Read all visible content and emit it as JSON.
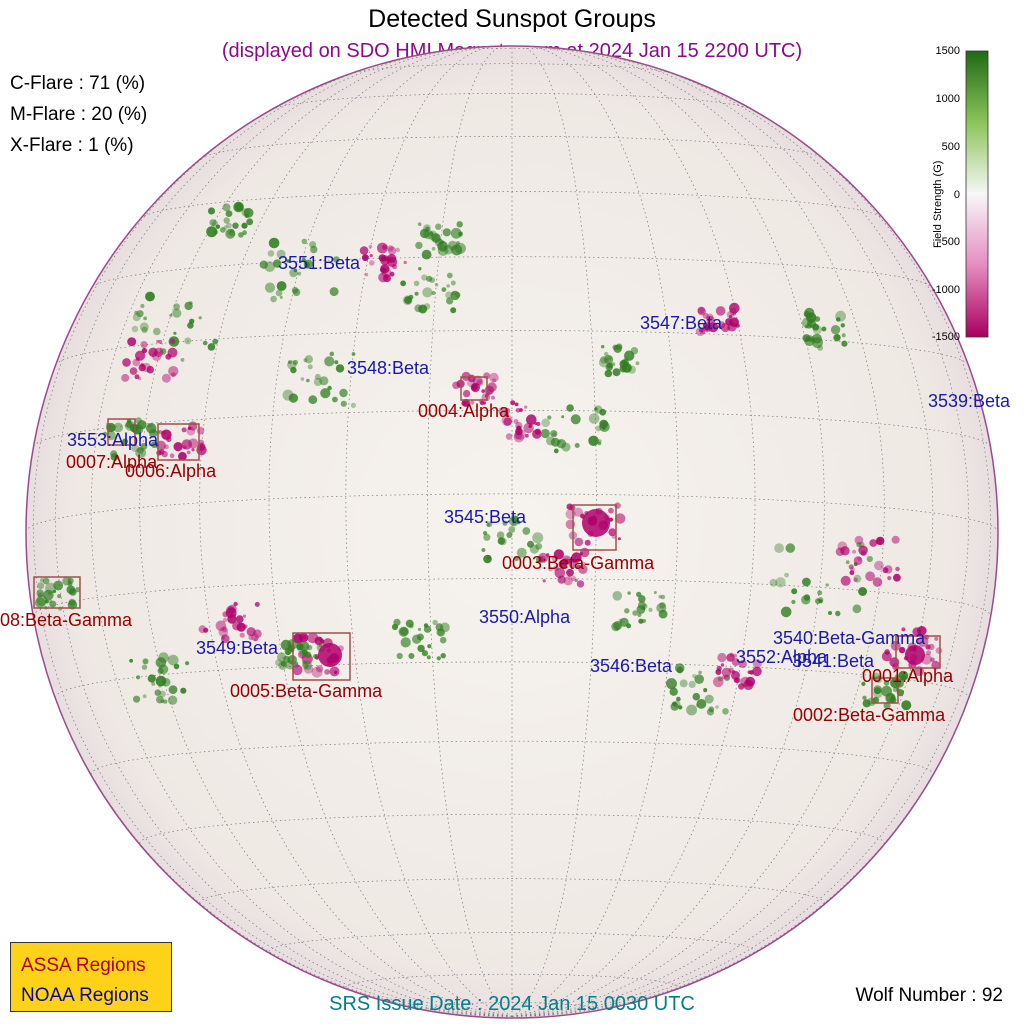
{
  "title": "Detected Sunspot Groups",
  "subtitle": "(displayed on SDO HMI Magnetogram at 2024 Jan 15 2200 UTC)",
  "flares": {
    "c": "C-Flare : 71 (%)",
    "m": "M-Flare : 20 (%)",
    "x": "X-Flare :  1 (%)"
  },
  "colorbar": {
    "label": "Field Strength (G)",
    "ticks": [
      "1500",
      "1000",
      "500",
      "0",
      "-500",
      "-1000",
      "-1500"
    ],
    "colors": {
      "positive": "#2f7d1f",
      "zero": "#f4f0ea",
      "negative": "#b0006b"
    }
  },
  "noaa_regions": [
    "3551:Beta",
    "3547:Beta",
    "3548:Beta",
    "3539:Beta",
    "3553:Alpha",
    "3545:Beta",
    "3550:Alpha",
    "3549:Beta",
    "3540:Beta-Gamma",
    "3552:Alpha",
    "3541:Beta",
    "3546:Beta"
  ],
  "assa_regions": [
    "0004:Alpha",
    "0007:Alpha",
    "0006:Alpha",
    "0003:Beta-Gamma",
    "08:Beta-Gamma",
    "0005:Beta-Gamma",
    "0001:Alpha",
    "0002:Beta-Gamma"
  ],
  "legend": {
    "assa": "ASSA Regions",
    "noaa": "NOAA Regions"
  },
  "issue_date": "SRS Issue Date : 2024 Jan 15 0030 UTC",
  "wolf_number": "Wolf Number : 92"
}
